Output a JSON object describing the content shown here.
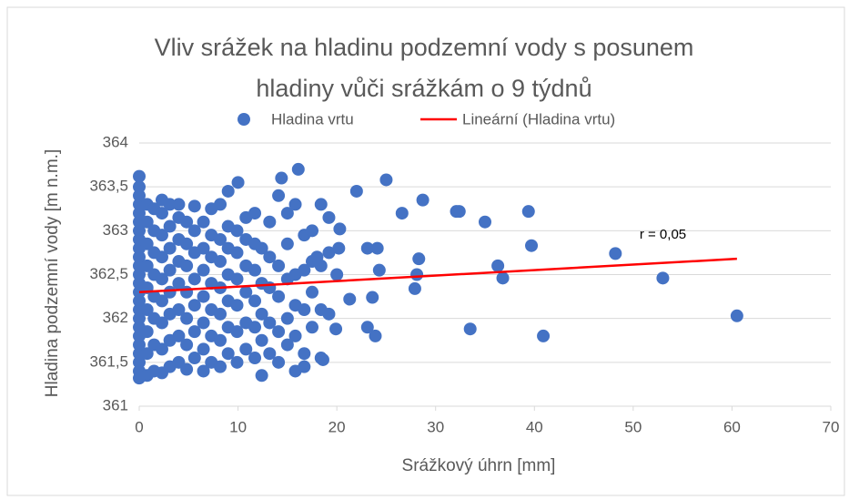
{
  "chart_data": {
    "type": "scatter",
    "title": "Vliv srážek na hladinu podzemní vody s posunem hladiny vůči srážkám o 9 týdnů",
    "x_label": "Srážkový úhrn [mm]",
    "y_label": "Hladina podzemní vody [m n.m.]",
    "annotation": "r = 0,05",
    "xlim": [
      0,
      70
    ],
    "xticks": [
      0,
      10,
      20,
      30,
      40,
      50,
      60,
      70
    ],
    "ylim": [
      361,
      364
    ],
    "yticks": [
      361,
      {
        "value": 361.5,
        "label": "361,5"
      },
      362,
      {
        "value": 362.5,
        "label": "362,5"
      },
      363,
      {
        "value": 363.5,
        "label": "363,5"
      },
      364
    ],
    "grid": true,
    "series": [
      {
        "name": "Hladina vrtu",
        "color": "#4472c4",
        "x": [
          0,
          0,
          0,
          0,
          0,
          0,
          0,
          0,
          0,
          0,
          0,
          0,
          0,
          0,
          0,
          0,
          0,
          0,
          0,
          0,
          0,
          0,
          0,
          0,
          0.8,
          0.8,
          0.8,
          0.8,
          0.8,
          0.8,
          0.8,
          0.8,
          0.8,
          1.5,
          1.5,
          1.5,
          1.5,
          1.5,
          1.5,
          1.5,
          1.5,
          2.3,
          2.3,
          2.3,
          2.3,
          2.3,
          2.3,
          2.3,
          2.3,
          2.3,
          3.1,
          3.1,
          3.1,
          3.1,
          3.1,
          3.1,
          3.1,
          3.1,
          4,
          4,
          4,
          4,
          4,
          4,
          4,
          4,
          4.8,
          4.8,
          4.8,
          4.8,
          4.8,
          4.8,
          4.8,
          5.6,
          5.6,
          5.6,
          5.6,
          5.6,
          5.6,
          5.6,
          6.5,
          6.5,
          6.5,
          6.5,
          6.5,
          6.5,
          6.5,
          7.3,
          7.3,
          7.3,
          7.3,
          7.3,
          7.3,
          7.3,
          8.2,
          8.2,
          8.2,
          8.2,
          8.2,
          8.2,
          8.2,
          9,
          9,
          9,
          9,
          9,
          9,
          9,
          9.9,
          9.9,
          9.9,
          9.9,
          9.9,
          9.9,
          10.8,
          10.8,
          10.8,
          10.8,
          10.8,
          10.8,
          11.7,
          11.7,
          11.7,
          11.7,
          11.7,
          11.7,
          12.4,
          12.4,
          12.4,
          12.4,
          12.4,
          13.2,
          13.2,
          13.2,
          13.2,
          13.2,
          14.1,
          14.1,
          14.1,
          14.1,
          14.1,
          15,
          15,
          15,
          15,
          15,
          15.8,
          15.8,
          15.8,
          15.8,
          15.8,
          16.7,
          16.7,
          16.7,
          16.7,
          16.7,
          17.5,
          17.5,
          17.5,
          17.5,
          18.4,
          18.4,
          18.4,
          18.4,
          19.2,
          19.2,
          19.2,
          10,
          14.4,
          16.1,
          25,
          22,
          28.7,
          32.1,
          32.4,
          35,
          39.4,
          39.7,
          48.2,
          53,
          60.5,
          40.9,
          33.5,
          36.3,
          36.8,
          28.3,
          28.1,
          27.9,
          26.6,
          23.1,
          24.1,
          24.3,
          23.6,
          23.9,
          23.1,
          20.3,
          20.2,
          19.9,
          18.6,
          21.3,
          20,
          18
        ],
        "values": [
          361.32,
          361.4,
          361.5,
          361.6,
          361.7,
          361.8,
          361.9,
          362,
          362.1,
          362.2,
          362.3,
          362.4,
          362.5,
          362.6,
          362.7,
          362.8,
          362.9,
          363,
          363.1,
          363.2,
          363.3,
          363.4,
          363.5,
          363.62,
          361.35,
          361.6,
          361.85,
          362.1,
          362.35,
          362.6,
          362.85,
          363.1,
          363.3,
          361.4,
          361.7,
          362,
          362.25,
          362.5,
          362.75,
          363,
          363.25,
          361.38,
          361.65,
          361.95,
          362.2,
          362.45,
          362.7,
          362.95,
          363.2,
          363.35,
          361.45,
          361.75,
          362.05,
          362.3,
          362.55,
          362.8,
          363.05,
          363.3,
          361.5,
          361.8,
          362.1,
          362.4,
          362.65,
          362.9,
          363.15,
          363.3,
          361.42,
          361.7,
          362,
          362.3,
          362.6,
          362.85,
          363.1,
          361.55,
          361.85,
          362.15,
          362.45,
          362.75,
          363,
          363.28,
          361.4,
          361.65,
          361.95,
          362.25,
          362.55,
          362.8,
          363.1,
          361.5,
          361.8,
          362.1,
          362.4,
          362.7,
          362.95,
          363.25,
          361.45,
          361.75,
          362.05,
          362.35,
          362.65,
          362.9,
          363.3,
          361.6,
          361.9,
          362.2,
          362.5,
          362.8,
          363.05,
          363.45,
          361.5,
          361.85,
          362.15,
          362.45,
          362.75,
          363,
          361.65,
          361.95,
          362.3,
          362.6,
          362.9,
          363.15,
          361.55,
          361.9,
          362.2,
          362.55,
          362.85,
          363.2,
          361.35,
          361.75,
          362.05,
          362.4,
          362.8,
          361.6,
          361.95,
          362.35,
          362.7,
          363.1,
          361.5,
          361.85,
          362.25,
          362.6,
          363.4,
          361.7,
          362,
          362.45,
          362.85,
          363.2,
          361.4,
          361.8,
          362.15,
          362.5,
          363.3,
          361.45,
          361.6,
          362.1,
          362.55,
          362.95,
          361.9,
          362.3,
          362.65,
          363,
          361.55,
          362.1,
          362.6,
          363.3,
          362.05,
          362.75,
          363.15,
          363.55,
          363.6,
          363.7,
          363.58,
          363.45,
          363.35,
          363.22,
          363.22,
          363.1,
          363.22,
          362.83,
          362.74,
          362.46,
          362.03,
          361.8,
          361.88,
          362.6,
          362.46,
          362.68,
          362.5,
          362.34,
          363.2,
          362.8,
          362.8,
          362.55,
          362.24,
          361.8,
          361.9,
          363.02,
          362.8,
          361.88,
          361.53,
          362.22,
          362.5,
          362.7
        ]
      }
    ],
    "trendline": {
      "name": "Lineární (Hladina vrtu)",
      "color": "#ff0000",
      "x": [
        0,
        60.5
      ],
      "values": [
        362.3,
        362.68
      ]
    }
  }
}
